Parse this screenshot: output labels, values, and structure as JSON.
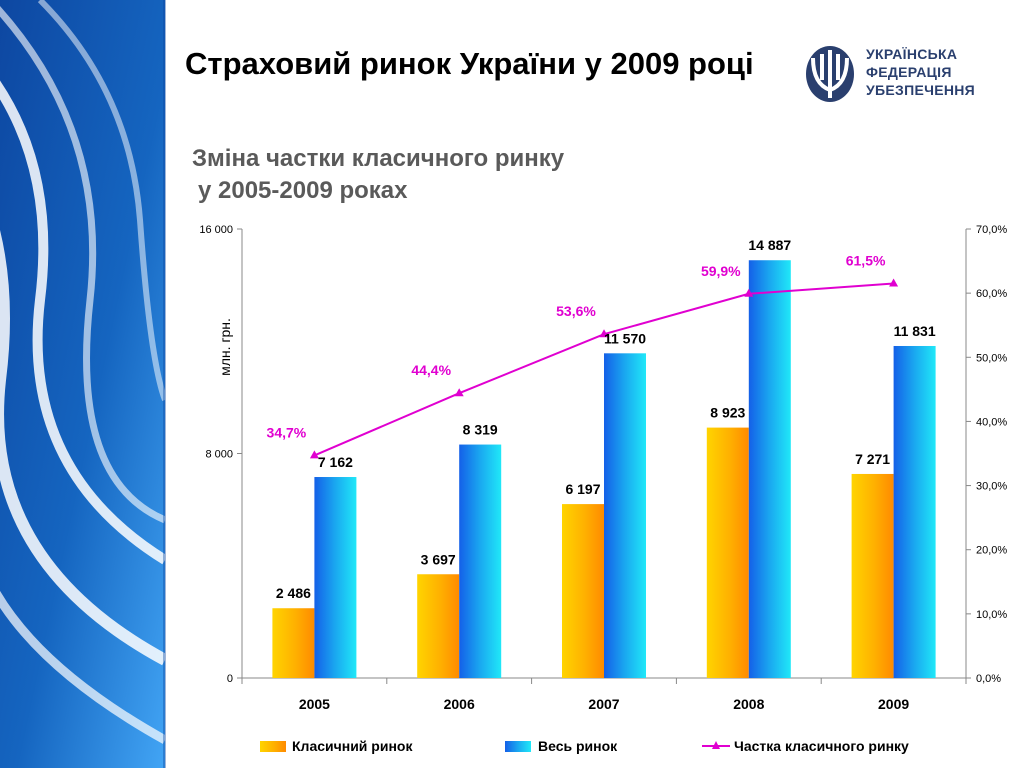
{
  "slide": {
    "title": "Страховий ринок України у 2009 році",
    "subtitle_line1": "Зміна частки класичного ринку",
    "subtitle_line2": "у 2005-2009 роках"
  },
  "logo": {
    "icon": "trident-shield-icon",
    "lines": [
      "УКРАЇНСЬКА",
      "ФЕДЕРАЦІЯ",
      "УБЕЗПЕЧЕННЯ"
    ],
    "color": "#2a3f6e"
  },
  "colors": {
    "classic_bar": "#ffb000",
    "total_bar": "#1aa8f0",
    "share_line": "#e000d0",
    "background_stripes": "#1565c0"
  },
  "chart_data": {
    "type": "bar",
    "categories": [
      "2005",
      "2006",
      "2007",
      "2008",
      "2009"
    ],
    "series": [
      {
        "name": "Класичний ринок",
        "kind": "bar",
        "axis": "left",
        "values": [
          2486,
          3697,
          6197,
          8923,
          7271
        ],
        "labels": [
          "2 486",
          "3 697",
          "6 197",
          "8 923",
          "7 271"
        ]
      },
      {
        "name": "Весь ринок",
        "kind": "bar",
        "axis": "left",
        "values": [
          7162,
          8319,
          11570,
          14887,
          11831
        ],
        "labels": [
          "7 162",
          "8 319",
          "11 570",
          "14 887",
          "11 831"
        ]
      },
      {
        "name": "Частка класичного ринку",
        "kind": "line",
        "axis": "right",
        "values": [
          34.7,
          44.4,
          53.6,
          59.9,
          61.5
        ],
        "labels": [
          "34,7%",
          "44,4%",
          "53,6%",
          "59,9%",
          "61,5%"
        ]
      }
    ],
    "ylabel": "млн. грн.",
    "ylim": [
      0,
      16000
    ],
    "left_ticks": [
      0,
      8000,
      16000
    ],
    "left_tick_labels": [
      "0",
      "8 000",
      "16 000"
    ],
    "y2lim": [
      0,
      70
    ],
    "right_ticks": [
      0,
      10,
      20,
      30,
      40,
      50,
      60,
      70
    ],
    "right_tick_labels": [
      "0,0%",
      "10,0%",
      "20,0%",
      "30,0%",
      "40,0%",
      "50,0%",
      "60,0%",
      "70,0%"
    ],
    "grid": false,
    "legend_position": "bottom"
  }
}
